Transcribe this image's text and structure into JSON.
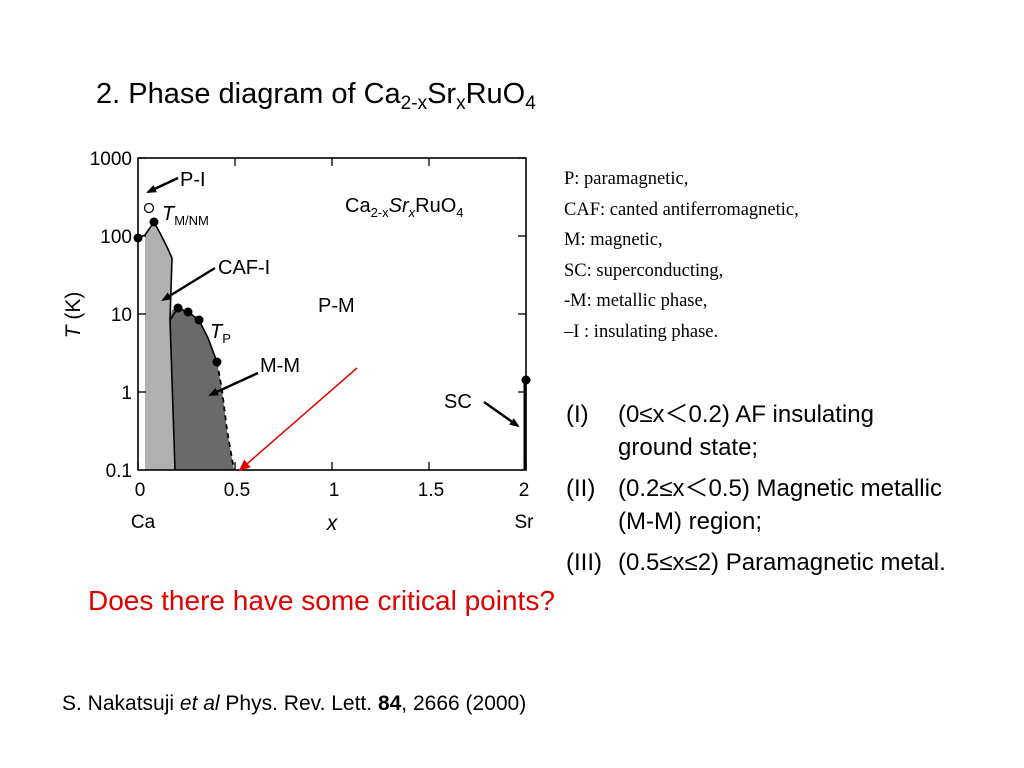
{
  "slide": {
    "title": {
      "prefix": "2. Phase diagram of Ca",
      "sub1": "2-x",
      "mid": "Sr",
      "sub2": "x",
      "rest": "RuO",
      "sub3": "4"
    },
    "legend": [
      "P: paramagnetic,",
      "CAF: canted antiferromagnetic,",
      "M:  magnetic,",
      "SC: superconducting,",
      "-M: metallic phase,",
      "–I :  insulating phase."
    ],
    "regions": [
      {
        "num": "(I)",
        "text": "(0≤x＜0.2) AF insulating ground state;"
      },
      {
        "num": "(II)",
        "text": "(0.2≤x＜0.5) Magnetic metallic (M-M) region;"
      },
      {
        "num": "(III)",
        "text": "(0.5≤x≤2) Paramagnetic metal."
      }
    ],
    "question": "Does there have some critical points?",
    "citation": {
      "author": "S. Nakatsuji ",
      "etal": "et al",
      "journal": " Phys. Rev. Lett. ",
      "volume": "84",
      "rest": ", 2666 (2000)"
    }
  },
  "figure": {
    "compound": {
      "a": "Ca",
      "b": "2-x",
      "c": "Sr",
      "d": "x",
      "e": "RuO",
      "f": "4"
    },
    "ylabel": {
      "sym": "T",
      "unit": " (K)"
    },
    "xlabel": "x",
    "xend_left": "Ca",
    "xend_right": "Sr",
    "xticks": [
      "0",
      "0.5",
      "1",
      "1.5",
      "2"
    ],
    "yticks": [
      "0.1",
      "1",
      "10",
      "100",
      "1000"
    ],
    "labels": {
      "pi": "P-I",
      "tm_sym": "T",
      "tm_sub": "M/NM",
      "cafi": "CAF-I",
      "pm": "P-M",
      "tp_sym": "T",
      "tp_sub": "P",
      "mm": "M-M",
      "sc": "SC"
    },
    "regions_color": {
      "caf_i": "#b0b0b0",
      "m_m": "#6a6a6a",
      "arrow_red": "#e00000"
    }
  }
}
